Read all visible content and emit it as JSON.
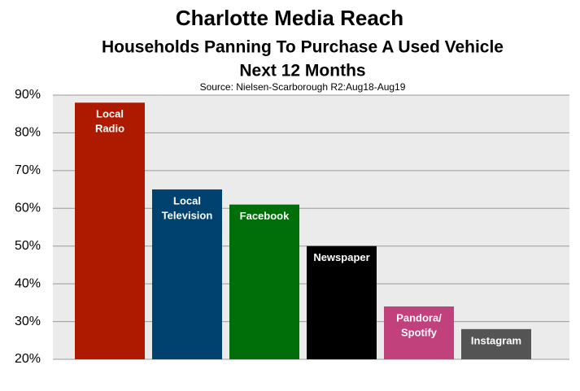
{
  "chart_data": {
    "type": "bar",
    "title": "Charlotte Media Reach",
    "subtitle": "Households Panning To Purchase A Used Vehicle",
    "period": "Next 12 Months",
    "source": "Source: Nielsen-Scarborough R2:Aug18-Aug19",
    "categories": [
      [
        "Local",
        "Radio"
      ],
      [
        "Local",
        "Television"
      ],
      [
        "Facebook"
      ],
      [
        "Newspaper"
      ],
      [
        "Pandora/",
        "Spotify"
      ],
      [
        "Instagram"
      ]
    ],
    "values": [
      88,
      65,
      61,
      50,
      34,
      28
    ],
    "colors": [
      "#ad1a00",
      "#00426f",
      "#006f0a",
      "#000000",
      "#c0417c",
      "#545454"
    ],
    "ylim": [
      20,
      90
    ],
    "yticks": [
      {
        "value": 20,
        "label": "20%"
      },
      {
        "value": 30,
        "label": "30%"
      },
      {
        "value": 40,
        "label": "40%"
      },
      {
        "value": 50,
        "label": "50%"
      },
      {
        "value": 60,
        "label": "60%"
      },
      {
        "value": 70,
        "label": "70%"
      },
      {
        "value": 80,
        "label": "80%"
      },
      {
        "value": 90,
        "label": "90%"
      }
    ],
    "grid": true
  }
}
